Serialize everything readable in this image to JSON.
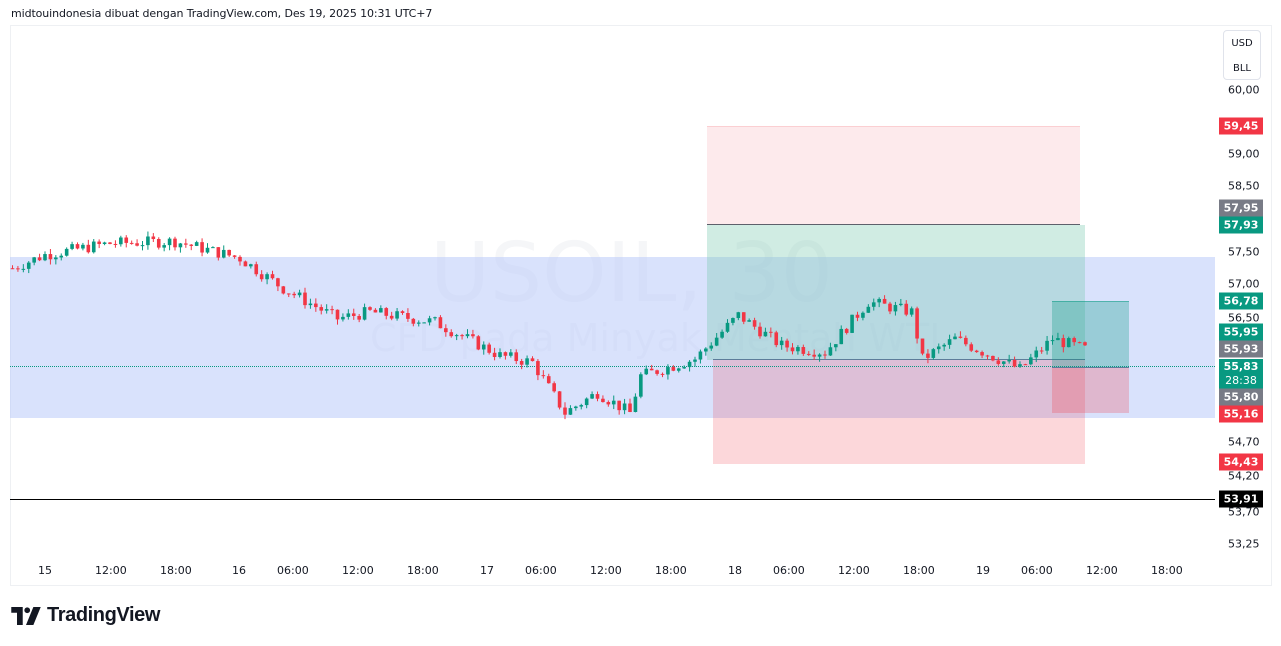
{
  "header": {
    "caption": "midtouindonesia dibuat dengan TradingView.com, Des 19, 2025 10:31 UTC+7"
  },
  "watermark": {
    "symbol": "USOIL, 30",
    "description": "CFD pada Minyak Mentah WTI"
  },
  "currency_menu": {
    "currency": "USD",
    "unit": "BLL"
  },
  "footer": {
    "brand": "TradingView"
  },
  "colors": {
    "up": "#089981",
    "down": "#f23645",
    "label_red": "#f23645",
    "label_green": "#089981",
    "label_gray": "#787b86",
    "label_black": "#000000",
    "range_fill": "#d6e0fd",
    "target_fill": "#b7e3d8",
    "stop_fill": "#f9cfd3"
  },
  "chart_data": {
    "type": "candlestick",
    "title": "USOIL, 30",
    "subtitle": "CFD pada Minyak Mentah WTI",
    "xlabel": "",
    "ylabel": "",
    "ylim": [
      53.0,
      60.3
    ],
    "grid": false,
    "x_tick_labels": [
      "15",
      "12:00",
      "18:00",
      "16",
      "06:00",
      "12:00",
      "18:00",
      "17",
      "06:00",
      "12:00",
      "18:00",
      "18",
      "06:00",
      "12:00",
      "18:00",
      "19",
      "06:00",
      "12:00",
      "18:00"
    ],
    "y_tick_labels": [
      "60,00",
      "59,00",
      "58,50",
      "57,50",
      "57,00",
      "56,50",
      "54,70",
      "54,20",
      "53,70",
      "53,25"
    ],
    "price_labels": [
      {
        "value": "59,45",
        "color": "red"
      },
      {
        "value": "57,95",
        "color": "gray"
      },
      {
        "value": "57,93",
        "color": "green"
      },
      {
        "value": "56,78",
        "color": "green"
      },
      {
        "value": "55,95",
        "color": "green"
      },
      {
        "value": "55,93",
        "color": "gray"
      },
      {
        "value": "55,83",
        "color": "green",
        "countdown": "28:38"
      },
      {
        "value": "55,80",
        "color": "gray"
      },
      {
        "value": "55,16",
        "color": "red"
      },
      {
        "value": "54,43",
        "color": "red"
      },
      {
        "value": "53,91",
        "color": "black"
      }
    ],
    "current_price": 55.83,
    "countdown": "28:38",
    "horizontal_line": 53.91,
    "range_box": {
      "top": 57.45,
      "bottom": 55.16
    },
    "position_large": {
      "entry": 55.93,
      "target": 57.93,
      "stop_zone_top": 59.45,
      "stop": 54.43
    },
    "position_small": {
      "entry": 55.8,
      "target": 56.78,
      "stop": 55.16
    },
    "approx_close_series": [
      {
        "t": "14 21:00",
        "c": 57.35
      },
      {
        "t": "15 00:00",
        "c": 57.55
      },
      {
        "t": "15 06:00",
        "c": 57.72
      },
      {
        "t": "15 12:00",
        "c": 57.75
      },
      {
        "t": "15 18:00",
        "c": 57.5
      },
      {
        "t": "15 22:00",
        "c": 57.05
      },
      {
        "t": "16 03:00",
        "c": 56.6
      },
      {
        "t": "16 06:00",
        "c": 56.7
      },
      {
        "t": "16 12:00",
        "c": 56.55
      },
      {
        "t": "16 18:00",
        "c": 56.05
      },
      {
        "t": "16 21:00",
        "c": 55.95
      },
      {
        "t": "17 00:00",
        "c": 55.2
      },
      {
        "t": "17 03:00",
        "c": 55.5
      },
      {
        "t": "17 06:00",
        "c": 55.2
      },
      {
        "t": "17 07:00",
        "c": 55.75
      },
      {
        "t": "17 12:00",
        "c": 56.0
      },
      {
        "t": "17 16:00",
        "c": 56.65
      },
      {
        "t": "17 20:00",
        "c": 56.2
      },
      {
        "t": "18 00:00",
        "c": 56.1
      },
      {
        "t": "18 04:00",
        "c": 56.85
      },
      {
        "t": "18 08:00",
        "c": 56.7
      },
      {
        "t": "18 09:00",
        "c": 56.0
      },
      {
        "t": "18 12:00",
        "c": 56.3
      },
      {
        "t": "18 18:00",
        "c": 55.85
      },
      {
        "t": "18 21:00",
        "c": 56.3
      },
      {
        "t": "19 00:00",
        "c": 56.15
      },
      {
        "t": "19 03:00",
        "c": 55.9
      },
      {
        "t": "19 10:00",
        "c": 55.83
      }
    ]
  }
}
